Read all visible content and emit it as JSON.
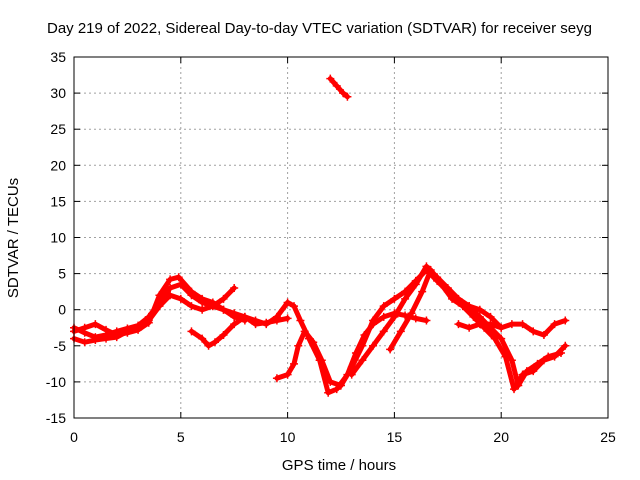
{
  "chart_data": {
    "type": "scatter",
    "title": "Day 219 of 2022, Sidereal Day-to-day VTEC variation (SDTVAR) for receiver seyg",
    "xlabel": "GPS time / hours",
    "ylabel": "SDTVAR / TECUs",
    "xlim": [
      0,
      25
    ],
    "ylim": [
      -15,
      35
    ],
    "xticks": [
      0,
      5,
      10,
      15,
      20,
      25
    ],
    "yticks": [
      -15,
      -10,
      -5,
      0,
      5,
      10,
      15,
      20,
      25,
      30,
      35
    ],
    "grid": true,
    "marker": "plus",
    "series": [
      {
        "name": "seg1",
        "color": "#ff0000",
        "points": [
          [
            0.0,
            -2.5
          ],
          [
            0.5,
            -3.2
          ],
          [
            1.0,
            -3.8
          ],
          [
            1.5,
            -3.5
          ],
          [
            2.0,
            -3.0
          ],
          [
            2.5,
            -2.6
          ],
          [
            3.0,
            -2.2
          ],
          [
            3.5,
            -1.0
          ],
          [
            4.0,
            1.0
          ],
          [
            4.5,
            3.0
          ],
          [
            5.0,
            3.5
          ],
          [
            5.5,
            2.0
          ],
          [
            6.0,
            1.0
          ],
          [
            6.5,
            0.5
          ],
          [
            7.0,
            0.0
          ],
          [
            7.5,
            -0.5
          ],
          [
            8.0,
            -1.0
          ],
          [
            8.5,
            -2.0
          ],
          [
            9.0,
            -1.8
          ],
          [
            9.5,
            -1.5
          ],
          [
            10.0,
            -1.2
          ]
        ]
      },
      {
        "name": "seg2",
        "color": "#ff0000",
        "points": [
          [
            0.0,
            -4.0
          ],
          [
            0.5,
            -4.5
          ],
          [
            1.0,
            -4.2
          ],
          [
            1.5,
            -4.0
          ],
          [
            2.0,
            -3.8
          ],
          [
            2.5,
            -3.0
          ],
          [
            3.0,
            -2.5
          ],
          [
            3.5,
            -1.5
          ],
          [
            4.0,
            0.5
          ],
          [
            4.5,
            2.0
          ],
          [
            5.0,
            1.5
          ],
          [
            5.5,
            0.5
          ],
          [
            6.0,
            0.0
          ],
          [
            6.5,
            0.5
          ],
          [
            7.0,
            1.5
          ],
          [
            7.5,
            3.0
          ]
        ]
      },
      {
        "name": "seg3",
        "color": "#ff0000",
        "points": [
          [
            0.0,
            -3.0
          ],
          [
            0.5,
            -2.5
          ],
          [
            1.0,
            -2.0
          ],
          [
            1.5,
            -2.8
          ],
          [
            2.0,
            -3.5
          ],
          [
            2.5,
            -3.2
          ],
          [
            3.0,
            -2.8
          ],
          [
            3.5,
            -1.8
          ],
          [
            4.0,
            2.0
          ],
          [
            4.5,
            4.2
          ],
          [
            4.9,
            4.5
          ],
          [
            5.5,
            2.5
          ],
          [
            6.0,
            1.5
          ],
          [
            6.5,
            1.0
          ],
          [
            7.0,
            0.0
          ],
          [
            7.5,
            -1.0
          ],
          [
            8.0,
            -1.5
          ]
        ]
      },
      {
        "name": "seg4",
        "color": "#ff0000",
        "points": [
          [
            5.5,
            -3.0
          ],
          [
            6.0,
            -4.0
          ],
          [
            6.3,
            -5.0
          ],
          [
            6.6,
            -4.5
          ],
          [
            7.0,
            -3.5
          ],
          [
            7.5,
            -2.0
          ],
          [
            8.0,
            -1.0
          ],
          [
            8.5,
            -1.5
          ],
          [
            9.0,
            -2.0
          ],
          [
            9.5,
            -1.0
          ],
          [
            10.0,
            1.0
          ],
          [
            10.3,
            0.5
          ],
          [
            10.6,
            -1.5
          ],
          [
            11.0,
            -4.0
          ],
          [
            11.5,
            -7.0
          ],
          [
            11.9,
            -11.5
          ],
          [
            12.3,
            -11.0
          ],
          [
            12.8,
            -9.0
          ],
          [
            13.2,
            -6.0
          ],
          [
            13.6,
            -3.5
          ],
          [
            14.0,
            -2.0
          ],
          [
            14.5,
            -1.0
          ],
          [
            15.0,
            -0.5
          ],
          [
            15.5,
            -0.8
          ],
          [
            16.0,
            -1.2
          ],
          [
            16.5,
            -1.5
          ]
        ]
      },
      {
        "name": "seg5",
        "color": "#ff0000",
        "points": [
          [
            9.5,
            -9.5
          ],
          [
            10.0,
            -9.0
          ],
          [
            10.3,
            -7.5
          ],
          [
            10.5,
            -5.0
          ],
          [
            10.8,
            -3.0
          ],
          [
            11.2,
            -4.5
          ],
          [
            11.6,
            -7.0
          ],
          [
            12.0,
            -10.0
          ],
          [
            12.5,
            -10.5
          ],
          [
            13.0,
            -8.0
          ],
          [
            13.5,
            -5.0
          ],
          [
            14.0,
            -1.5
          ],
          [
            14.5,
            0.5
          ],
          [
            15.0,
            1.5
          ],
          [
            15.5,
            2.5
          ],
          [
            16.0,
            4.0
          ],
          [
            16.5,
            5.5
          ],
          [
            17.0,
            4.0
          ],
          [
            17.5,
            2.5
          ],
          [
            18.0,
            1.0
          ],
          [
            18.5,
            0.5
          ],
          [
            19.0,
            0.0
          ],
          [
            19.5,
            -1.0
          ],
          [
            20.0,
            -2.5
          ]
        ]
      },
      {
        "name": "seg6",
        "color": "#ff0000",
        "points": [
          [
            12.0,
            32.0
          ],
          [
            12.3,
            31.0
          ],
          [
            12.6,
            30.0
          ],
          [
            12.8,
            29.5
          ]
        ]
      },
      {
        "name": "seg7",
        "color": "#ff0000",
        "points": [
          [
            13.0,
            -9.0
          ],
          [
            13.5,
            -7.0
          ],
          [
            14.0,
            -5.0
          ],
          [
            14.5,
            -3.0
          ],
          [
            15.0,
            -1.0
          ],
          [
            15.5,
            1.5
          ],
          [
            16.0,
            3.5
          ],
          [
            16.5,
            6.0
          ],
          [
            17.0,
            4.5
          ],
          [
            17.5,
            3.0
          ],
          [
            18.0,
            1.5
          ],
          [
            18.5,
            0.5
          ],
          [
            19.0,
            -1.0
          ],
          [
            19.5,
            -2.5
          ],
          [
            20.0,
            -4.0
          ],
          [
            20.5,
            -7.0
          ],
          [
            20.8,
            -10.5
          ],
          [
            21.2,
            -8.5
          ],
          [
            21.7,
            -7.5
          ],
          [
            22.2,
            -6.5
          ],
          [
            22.8,
            -6.0
          ]
        ]
      },
      {
        "name": "seg8",
        "color": "#ff0000",
        "points": [
          [
            14.8,
            -5.5
          ],
          [
            15.3,
            -3.0
          ],
          [
            15.8,
            -0.5
          ],
          [
            16.3,
            2.5
          ],
          [
            16.7,
            5.5
          ],
          [
            17.2,
            3.5
          ],
          [
            17.7,
            1.5
          ],
          [
            18.2,
            0.5
          ],
          [
            18.7,
            -1.0
          ],
          [
            19.2,
            -2.5
          ],
          [
            19.7,
            -4.0
          ],
          [
            20.2,
            -6.5
          ],
          [
            20.6,
            -11.0
          ],
          [
            21.0,
            -9.0
          ],
          [
            21.5,
            -8.5
          ],
          [
            22.0,
            -7.0
          ],
          [
            22.5,
            -6.5
          ],
          [
            23.0,
            -5.0
          ]
        ]
      },
      {
        "name": "seg9",
        "color": "#ff0000",
        "points": [
          [
            18.0,
            -2.0
          ],
          [
            18.5,
            -2.5
          ],
          [
            19.0,
            -2.0
          ],
          [
            19.5,
            -2.0
          ],
          [
            20.0,
            -2.5
          ],
          [
            20.5,
            -2.0
          ],
          [
            21.0,
            -2.0
          ],
          [
            21.5,
            -3.0
          ],
          [
            22.0,
            -3.5
          ],
          [
            22.5,
            -2.0
          ],
          [
            23.0,
            -1.5
          ]
        ]
      }
    ]
  }
}
